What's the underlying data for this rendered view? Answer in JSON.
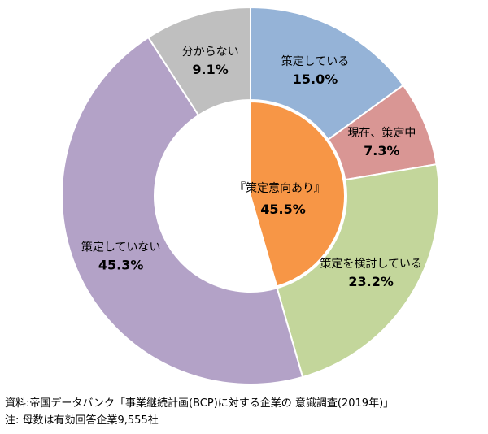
{
  "chart_data": {
    "type": "pie",
    "title": "",
    "slices": [
      {
        "label": "策定している",
        "value": 15.0,
        "display": "15.0%",
        "color": "#95b3d7"
      },
      {
        "label": "現在、策定中",
        "value": 7.3,
        "display": "7.3%",
        "color": "#d99694"
      },
      {
        "label": "策定を検討している",
        "value": 23.2,
        "display": "23.2%",
        "color": "#c3d69b"
      },
      {
        "label": "策定していない",
        "value": 45.3,
        "display": "45.3%",
        "color": "#b3a2c7"
      },
      {
        "label": "分からない",
        "value": 9.1,
        "display": "9.1%",
        "color": "#bfbfbf"
      }
    ],
    "inner": {
      "label": "『策定意向あり』",
      "value": 45.5,
      "display": "45.5%",
      "color": "#f79646"
    },
    "legend": "none"
  },
  "notes": {
    "source": "資料:帝国データバンク「事業継続計画(BCP)に対する企業の 意識調査(2019年)」",
    "note": "注: 母数は有効回答企業9,555社"
  }
}
